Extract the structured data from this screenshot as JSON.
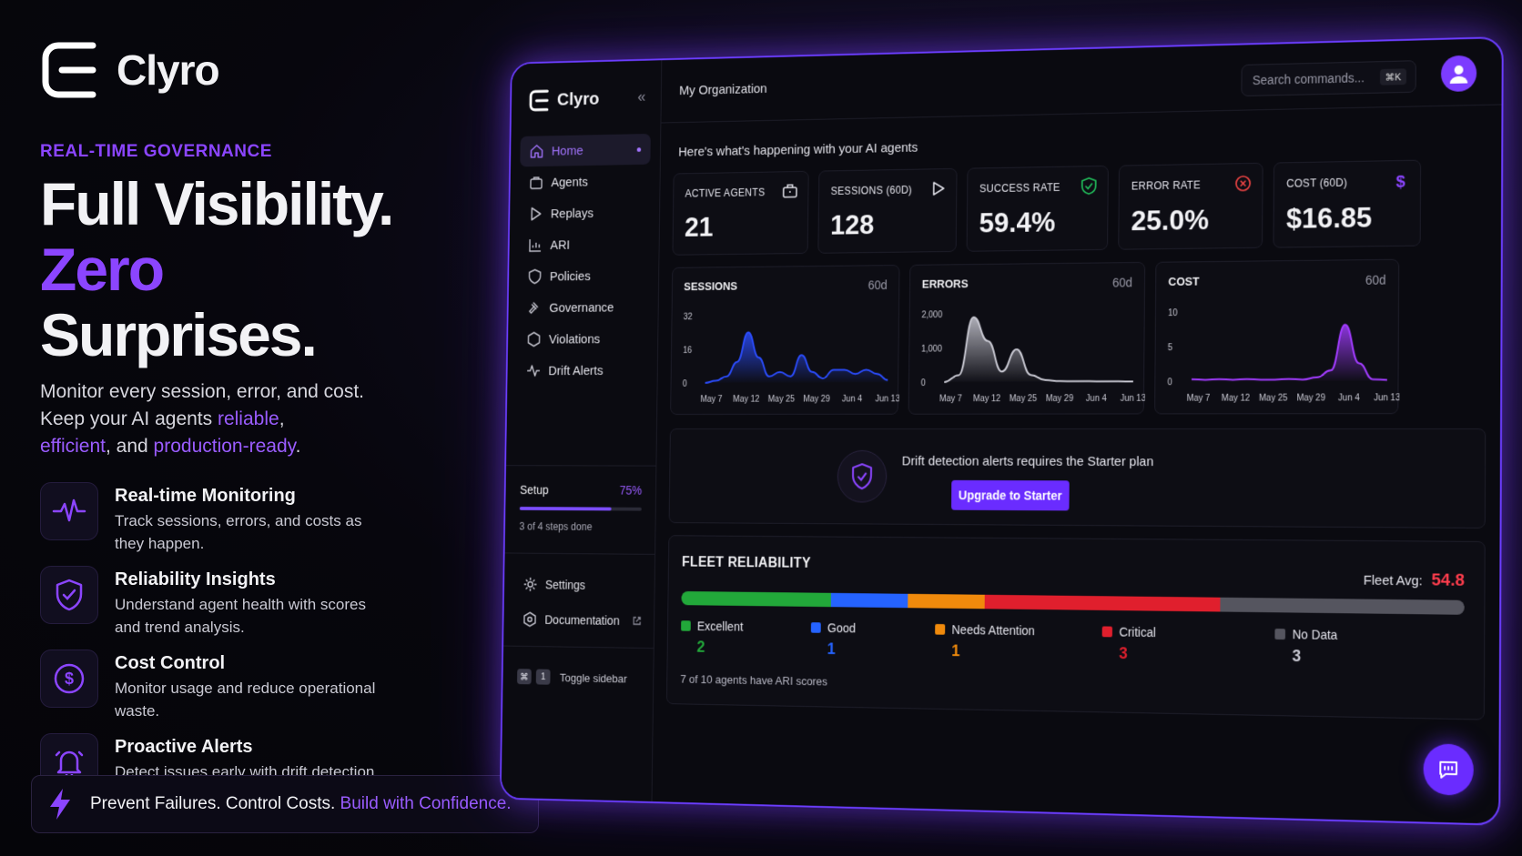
{
  "marketing": {
    "brand": "Clyro",
    "eyebrow": "REAL-TIME GOVERNANCE",
    "headline_line1": "Full Visibility.",
    "headline_word_purple": "Zero",
    "headline_line2_rest": " Surprises.",
    "lede_1": "Monitor every session, error, and cost.",
    "lede_2": "Keep your AI agents ",
    "lede_hl_1": "reliable",
    "lede_comma": ",",
    "lede_hl_2": "efficient",
    "lede_and": ", and ",
    "lede_hl_3": "production-ready",
    "lede_period": ".",
    "features": [
      {
        "title": "Real-time Monitoring",
        "desc": "Track sessions, errors, and costs as they happen.",
        "icon": "pulse-icon"
      },
      {
        "title": "Reliability Insights",
        "desc": "Understand agent health with scores and trend analysis.",
        "icon": "shield-check-icon"
      },
      {
        "title": "Cost Control",
        "desc": "Monitor usage and reduce operational waste.",
        "icon": "dollar-icon"
      },
      {
        "title": "Proactive Alerts",
        "desc": "Detect issues early with drift detection and alerts.",
        "icon": "bell-icon"
      }
    ],
    "cta_plain": "Prevent Failures. Control Costs. ",
    "cta_hl": "Build with Confidence."
  },
  "sidebar": {
    "brand": "Clyro",
    "collapse": "«",
    "items": [
      {
        "label": "Home",
        "icon": "home-icon",
        "active": true
      },
      {
        "label": "Agents",
        "icon": "briefcase-icon"
      },
      {
        "label": "Replays",
        "icon": "play-icon"
      },
      {
        "label": "ARI",
        "icon": "chart-icon"
      },
      {
        "label": "Policies",
        "icon": "shield-icon"
      },
      {
        "label": "Governance",
        "icon": "gavel-icon"
      },
      {
        "label": "Violations",
        "icon": "hexagon-icon"
      },
      {
        "label": "Drift Alerts",
        "icon": "activity-icon"
      }
    ],
    "setup": {
      "label": "Setup",
      "percent_text": "75%",
      "progress": 0.75,
      "sub": "3 of 4 steps done"
    },
    "settings": "Settings",
    "documentation": "Documentation",
    "toggle_keys": [
      "⌘",
      "1"
    ],
    "toggle_label": "Toggle sidebar"
  },
  "topbar": {
    "org": "My Organization",
    "search_placeholder": "Search commands...",
    "search_kbd": "⌘K"
  },
  "greeting": "Here's what's happening with your AI agents",
  "stats": [
    {
      "label": "ACTIVE AGENTS",
      "value": "21",
      "icon": "briefcase-icon"
    },
    {
      "label": "SESSIONS (60D)",
      "value": "128",
      "icon": "play-icon"
    },
    {
      "label": "SUCCESS RATE",
      "value": "59.4%",
      "icon": "shield-check-icon",
      "color": "#22c55e"
    },
    {
      "label": "ERROR RATE",
      "value": "25.0%",
      "icon": "x-circle-icon",
      "color": "#ef4444"
    },
    {
      "label": "COST (60D)",
      "value": "$16.85",
      "icon": "dollar-icon",
      "color": "#8b45ff"
    }
  ],
  "chart_data": [
    {
      "type": "area",
      "title": "SESSIONS",
      "range": "60d",
      "y_ticks": [
        "32",
        "16",
        "0"
      ],
      "ylim": [
        0,
        32
      ],
      "x_ticks": [
        "May 7",
        "May 12",
        "May 25",
        "May 29",
        "Jun 4",
        "Jun 13"
      ],
      "values": [
        0,
        1,
        3,
        10,
        24,
        12,
        3,
        5,
        3,
        13,
        5,
        2,
        6,
        6,
        4,
        6,
        4,
        1
      ],
      "color": "#2b4dff"
    },
    {
      "type": "area",
      "title": "ERRORS",
      "range": "60d",
      "y_ticks": [
        "2,000",
        "1,000",
        "0"
      ],
      "ylim": [
        0,
        2000
      ],
      "x_ticks": [
        "May 7",
        "May 12",
        "May 25",
        "May 29",
        "Jun 4",
        "Jun 13"
      ],
      "values": [
        0,
        200,
        1900,
        1200,
        300,
        950,
        200,
        50,
        20,
        10,
        10,
        5,
        5,
        0
      ],
      "color": "#c9c9d3"
    },
    {
      "type": "area",
      "title": "COST",
      "range": "60d",
      "y_ticks": [
        "10",
        "5",
        "0"
      ],
      "ylim": [
        0,
        10
      ],
      "x_ticks": [
        "May 7",
        "May 12",
        "May 25",
        "May 29",
        "Jun 4",
        "Jun 13"
      ],
      "values": [
        0.3,
        0.2,
        0.3,
        0.2,
        0.3,
        0.2,
        0.2,
        0.3,
        0.2,
        0.5,
        1.5,
        8.0,
        2.5,
        0.2,
        0.1
      ],
      "color": "#a23cff"
    }
  ],
  "upgrade": {
    "message": "Drift detection alerts requires the Starter plan",
    "button": "Upgrade to Starter"
  },
  "fleet": {
    "title": "FLEET RELIABILITY",
    "avg_label": "Fleet Avg:",
    "avg_value": "54.8",
    "segments": [
      {
        "label": "Excellent",
        "count": "2",
        "color": "#22a83a"
      },
      {
        "label": "Good",
        "count": "1",
        "color": "#2563ff"
      },
      {
        "label": "Needs Attention",
        "count": "1",
        "color": "#f08a0c"
      },
      {
        "label": "Critical",
        "count": "3",
        "color": "#e01f2d"
      },
      {
        "label": "No Data",
        "count": "3",
        "color": "#55555f"
      }
    ],
    "footer": "7 of 10 agents have ARI scores"
  }
}
